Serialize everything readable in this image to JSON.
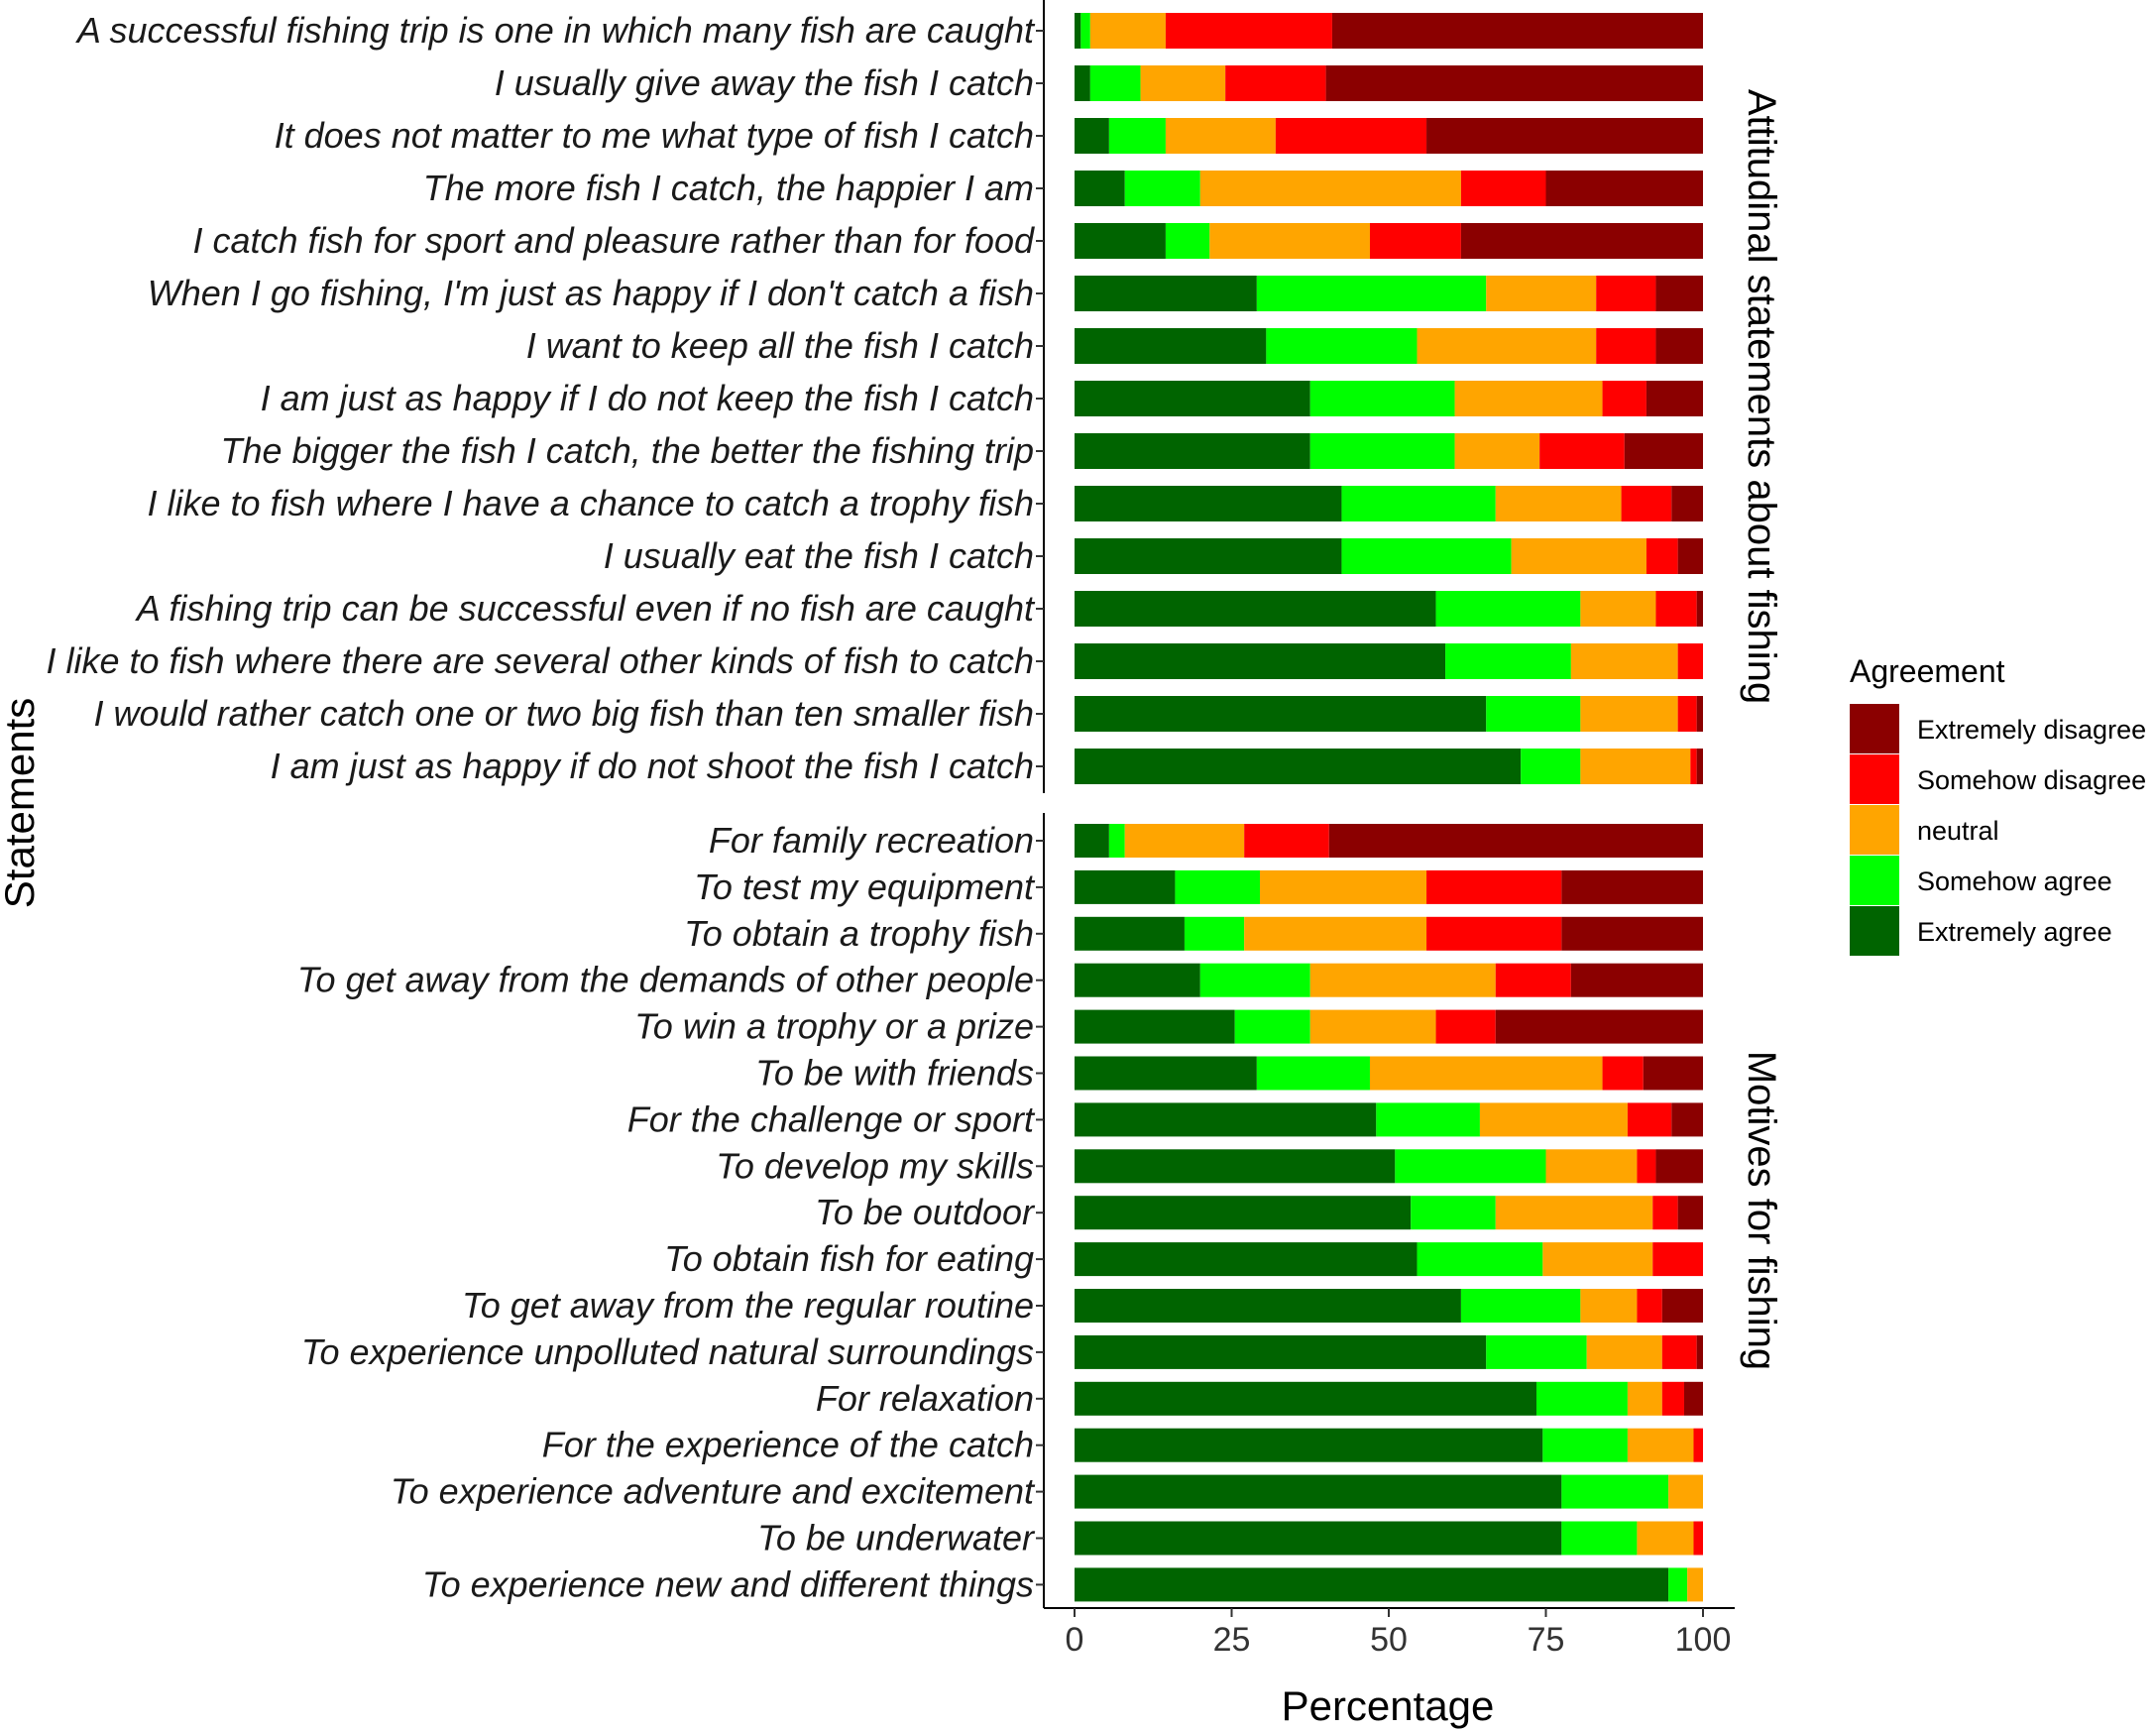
{
  "chart_data": {
    "type": "bar",
    "orientation": "horizontal",
    "stacked": true,
    "xlabel": "Percentage",
    "ylabel": "Statements",
    "xlim": [
      0,
      100
    ],
    "xticks": [
      0,
      25,
      50,
      75,
      100
    ],
    "grid": false,
    "legend": {
      "title": "Agreement",
      "position": "right",
      "entries": [
        "Extremely disagree",
        "Somehow disagree",
        "neutral",
        "Somehow agree",
        "Extremely agree"
      ]
    },
    "levels": [
      {
        "name": "Extremely agree",
        "color": "#006400"
      },
      {
        "name": "Somehow agree",
        "color": "#00ff00"
      },
      {
        "name": "neutral",
        "color": "#ffa500"
      },
      {
        "name": "Somehow disagree",
        "color": "#ff0000"
      },
      {
        "name": "Extremely disagree",
        "color": "#8b0000"
      }
    ],
    "panels": [
      {
        "strip": "Attitudinal statements about fishing",
        "rows": [
          {
            "label": "A successful fishing trip is one in which many fish are caught",
            "values": [
              1,
              1.5,
              12,
              26.5,
              59
            ]
          },
          {
            "label": "I usually give away the fish I catch",
            "values": [
              2.5,
              8,
              13.5,
              16,
              60
            ]
          },
          {
            "label": "It does not matter to me what type of fish I catch",
            "values": [
              5.5,
              9,
              17.5,
              24,
              44
            ]
          },
          {
            "label": "The more fish I catch, the happier I am",
            "values": [
              8,
              12,
              41.5,
              13.5,
              25
            ]
          },
          {
            "label": "I catch fish for sport and pleasure rather than for food",
            "values": [
              14.5,
              7,
              25.5,
              14.5,
              38.5
            ]
          },
          {
            "label": "When I go fishing, I'm just as happy if I don't catch a fish",
            "values": [
              29,
              36.5,
              17.5,
              9.5,
              7.5
            ]
          },
          {
            "label": "I want to keep all the fish I catch",
            "values": [
              30.5,
              24,
              28.5,
              9.5,
              7.5
            ]
          },
          {
            "label": "I am just as happy if I do not keep the fish I catch",
            "values": [
              37.5,
              23,
              23.5,
              7,
              9
            ]
          },
          {
            "label": "The bigger the fish I catch, the better the fishing trip",
            "values": [
              37.5,
              23,
              13.5,
              13.5,
              12.5
            ]
          },
          {
            "label": "I like to fish where I have a chance to catch a trophy fish",
            "values": [
              42.5,
              24.5,
              20,
              8,
              5
            ]
          },
          {
            "label": "I usually eat the fish I catch",
            "values": [
              42.5,
              27,
              21.5,
              5,
              4
            ]
          },
          {
            "label": "A fishing trip can be successful even if no fish are caught",
            "values": [
              57.5,
              23,
              12,
              6.5,
              1
            ]
          },
          {
            "label": "I like to fish where there are several other kinds of fish to catch",
            "values": [
              59,
              20,
              17,
              4,
              0
            ]
          },
          {
            "label": "I would rather catch one or two big fish than ten smaller fish",
            "values": [
              65.5,
              15,
              15.5,
              3,
              1
            ]
          },
          {
            "label": "I am just as happy if do not shoot the fish I catch",
            "values": [
              71,
              9.5,
              17.5,
              1,
              1
            ]
          }
        ]
      },
      {
        "strip": "Motives for fishing",
        "rows": [
          {
            "label": "For family recreation",
            "values": [
              5.5,
              2.5,
              19,
              13.5,
              59.5
            ]
          },
          {
            "label": "To test my equipment",
            "values": [
              16,
              13.5,
              26.5,
              21.5,
              22.5
            ]
          },
          {
            "label": "To obtain a trophy fish",
            "values": [
              17.5,
              9.5,
              29,
              21.5,
              22.5
            ]
          },
          {
            "label": "To get away from the demands of other people",
            "values": [
              20,
              17.5,
              29.5,
              12,
              21
            ]
          },
          {
            "label": "To win a trophy or a prize",
            "values": [
              25.5,
              12,
              20,
              9.5,
              33
            ]
          },
          {
            "label": "To be with friends",
            "values": [
              29,
              18,
              37,
              6.5,
              9.5
            ]
          },
          {
            "label": "For the challenge or sport",
            "values": [
              48,
              16.5,
              23.5,
              7,
              5
            ]
          },
          {
            "label": "To develop my skills",
            "values": [
              51,
              24,
              14.5,
              3,
              7.5
            ]
          },
          {
            "label": "To be outdoor",
            "values": [
              53.5,
              13.5,
              25,
              4,
              4
            ]
          },
          {
            "label": "To obtain fish for eating",
            "values": [
              54.5,
              20,
              17.5,
              8,
              0
            ]
          },
          {
            "label": "To get away from the regular routine",
            "values": [
              61.5,
              19,
              9,
              4,
              6.5
            ]
          },
          {
            "label": "To experience unpolluted natural surroundings",
            "values": [
              65.5,
              16,
              12,
              5.5,
              1
            ]
          },
          {
            "label": "For relaxation",
            "values": [
              73.5,
              14.5,
              5.5,
              3.5,
              3
            ]
          },
          {
            "label": "For the experience of the catch",
            "values": [
              74.5,
              13.5,
              10.5,
              1.5,
              0
            ]
          },
          {
            "label": "To experience adventure and excitement",
            "values": [
              77.5,
              17,
              5.5,
              0,
              0
            ]
          },
          {
            "label": "To be underwater",
            "values": [
              77.5,
              12,
              9,
              1.5,
              0
            ]
          },
          {
            "label": "To experience new and different things",
            "values": [
              94.5,
              3,
              2.5,
              0,
              0
            ]
          }
        ]
      }
    ]
  }
}
